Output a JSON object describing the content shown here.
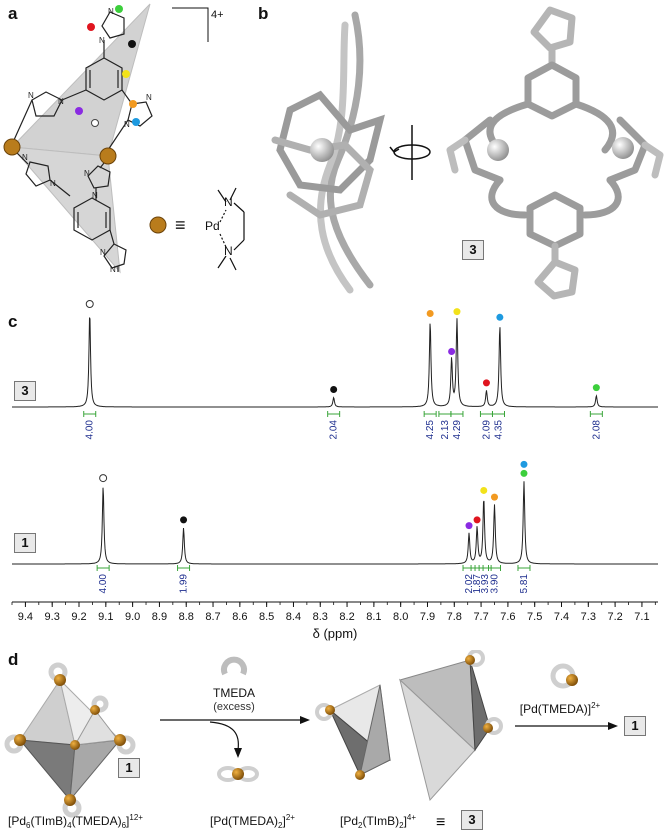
{
  "panels": {
    "a": "a",
    "b": "b",
    "c": "c",
    "d": "d"
  },
  "panel_a": {
    "charge": "4+",
    "equiv_symbol": "≡",
    "metal": "Pd",
    "n1": "N",
    "n2": "N",
    "ring_n": "N"
  },
  "panel_b": {
    "compound": "3"
  },
  "chart_data": [
    {
      "type": "line",
      "title": "",
      "compound": "3",
      "peaks": [
        {
          "shift": 9.16,
          "height": 1.0,
          "marker": "open"
        },
        {
          "shift": 8.25,
          "height": 0.1,
          "marker": "black"
        },
        {
          "shift": 7.89,
          "height": 0.9,
          "marker": "orange"
        },
        {
          "shift": 7.81,
          "height": 0.5,
          "marker": "purple"
        },
        {
          "shift": 7.79,
          "height": 0.92,
          "marker": "yellow"
        },
        {
          "shift": 7.68,
          "height": 0.17,
          "marker": "red"
        },
        {
          "shift": 7.63,
          "height": 0.86,
          "marker": "blue"
        },
        {
          "shift": 7.27,
          "height": 0.12,
          "marker": "green"
        }
      ],
      "integrals": [
        {
          "shift": 9.16,
          "label": "4.00"
        },
        {
          "shift": 8.25,
          "label": "2.04"
        },
        {
          "shift": 7.89,
          "label": "4.25"
        },
        {
          "shift": 7.835,
          "label": "2.13"
        },
        {
          "shift": 7.79,
          "label": "4.29"
        },
        {
          "shift": 7.68,
          "label": "2.09"
        },
        {
          "shift": 7.635,
          "label": "4.35"
        },
        {
          "shift": 7.27,
          "label": "2.08"
        }
      ]
    },
    {
      "type": "line",
      "title": "",
      "compound": "1",
      "peaks": [
        {
          "shift": 9.11,
          "height": 0.82,
          "marker": "open"
        },
        {
          "shift": 8.81,
          "height": 0.38,
          "marker": "black"
        },
        {
          "shift": 7.745,
          "height": 0.32,
          "marker": "purple"
        },
        {
          "shift": 7.715,
          "height": 0.38,
          "marker": "red"
        },
        {
          "shift": 7.69,
          "height": 0.69,
          "marker": "yellow"
        },
        {
          "shift": 7.65,
          "height": 0.62,
          "marker": "orange"
        },
        {
          "shift": 7.54,
          "height": 0.87,
          "marker": "blue-green"
        }
      ],
      "integrals": [
        {
          "shift": 9.11,
          "label": "4.00"
        },
        {
          "shift": 8.81,
          "label": "1.99"
        },
        {
          "shift": 7.745,
          "label": "2.02"
        },
        {
          "shift": 7.715,
          "label": "1.87"
        },
        {
          "shift": 7.685,
          "label": "3.93"
        },
        {
          "shift": 7.65,
          "label": "3.90"
        },
        {
          "shift": 7.54,
          "label": "5.81"
        }
      ],
      "x_ticks": [
        "9.4",
        "9.3",
        "9.2",
        "9.1",
        "9.0",
        "8.9",
        "8.8",
        "8.7",
        "8.6",
        "8.5",
        "8.4",
        "8.3",
        "8.2",
        "8.1",
        "8.0",
        "7.9",
        "7.8",
        "7.7",
        "7.6",
        "7.5",
        "7.4",
        "7.3",
        "7.2",
        "7.1"
      ],
      "xlabel": "δ (ppm)",
      "xlim": [
        9.45,
        7.04
      ]
    }
  ],
  "marker_colors": {
    "black": "#111111",
    "orange": "#f29a21",
    "purple": "#8a2be2",
    "yellow": "#f2e21a",
    "red": "#e0151f",
    "blue": "#1e9ae0",
    "green": "#3ccf3c",
    "integral": "#3aa53a",
    "integral_label": "#1f2f8f"
  },
  "panel_d": {
    "reagent1_name": "TMEDA",
    "reagent1_note": "(excess)",
    "reagent2_main": "[Pd(TMEDA)]",
    "reagent2_sup": "2+",
    "product_box": "1",
    "start_box": "1",
    "result_box": "3",
    "start_formula_main": "[Pd",
    "start_formula_s1": "6",
    "start_formula_mid": "(TImB)",
    "start_formula_s2": "4",
    "start_formula_end": "(TMEDA)",
    "start_formula_s3": "6",
    "start_formula_close": "]",
    "start_formula_sup": "12+",
    "byproduct_main": "[Pd(TMEDA)",
    "byproduct_sub": "2",
    "byproduct_close": "]",
    "byproduct_sup": "2+",
    "mid_formula_main": "[Pd",
    "mid_formula_s1": "2",
    "mid_formula_mid": "(TImB)",
    "mid_formula_s2": "2",
    "mid_formula_close": "]",
    "mid_formula_sup": "4+",
    "equiv_symbol": "≡"
  }
}
